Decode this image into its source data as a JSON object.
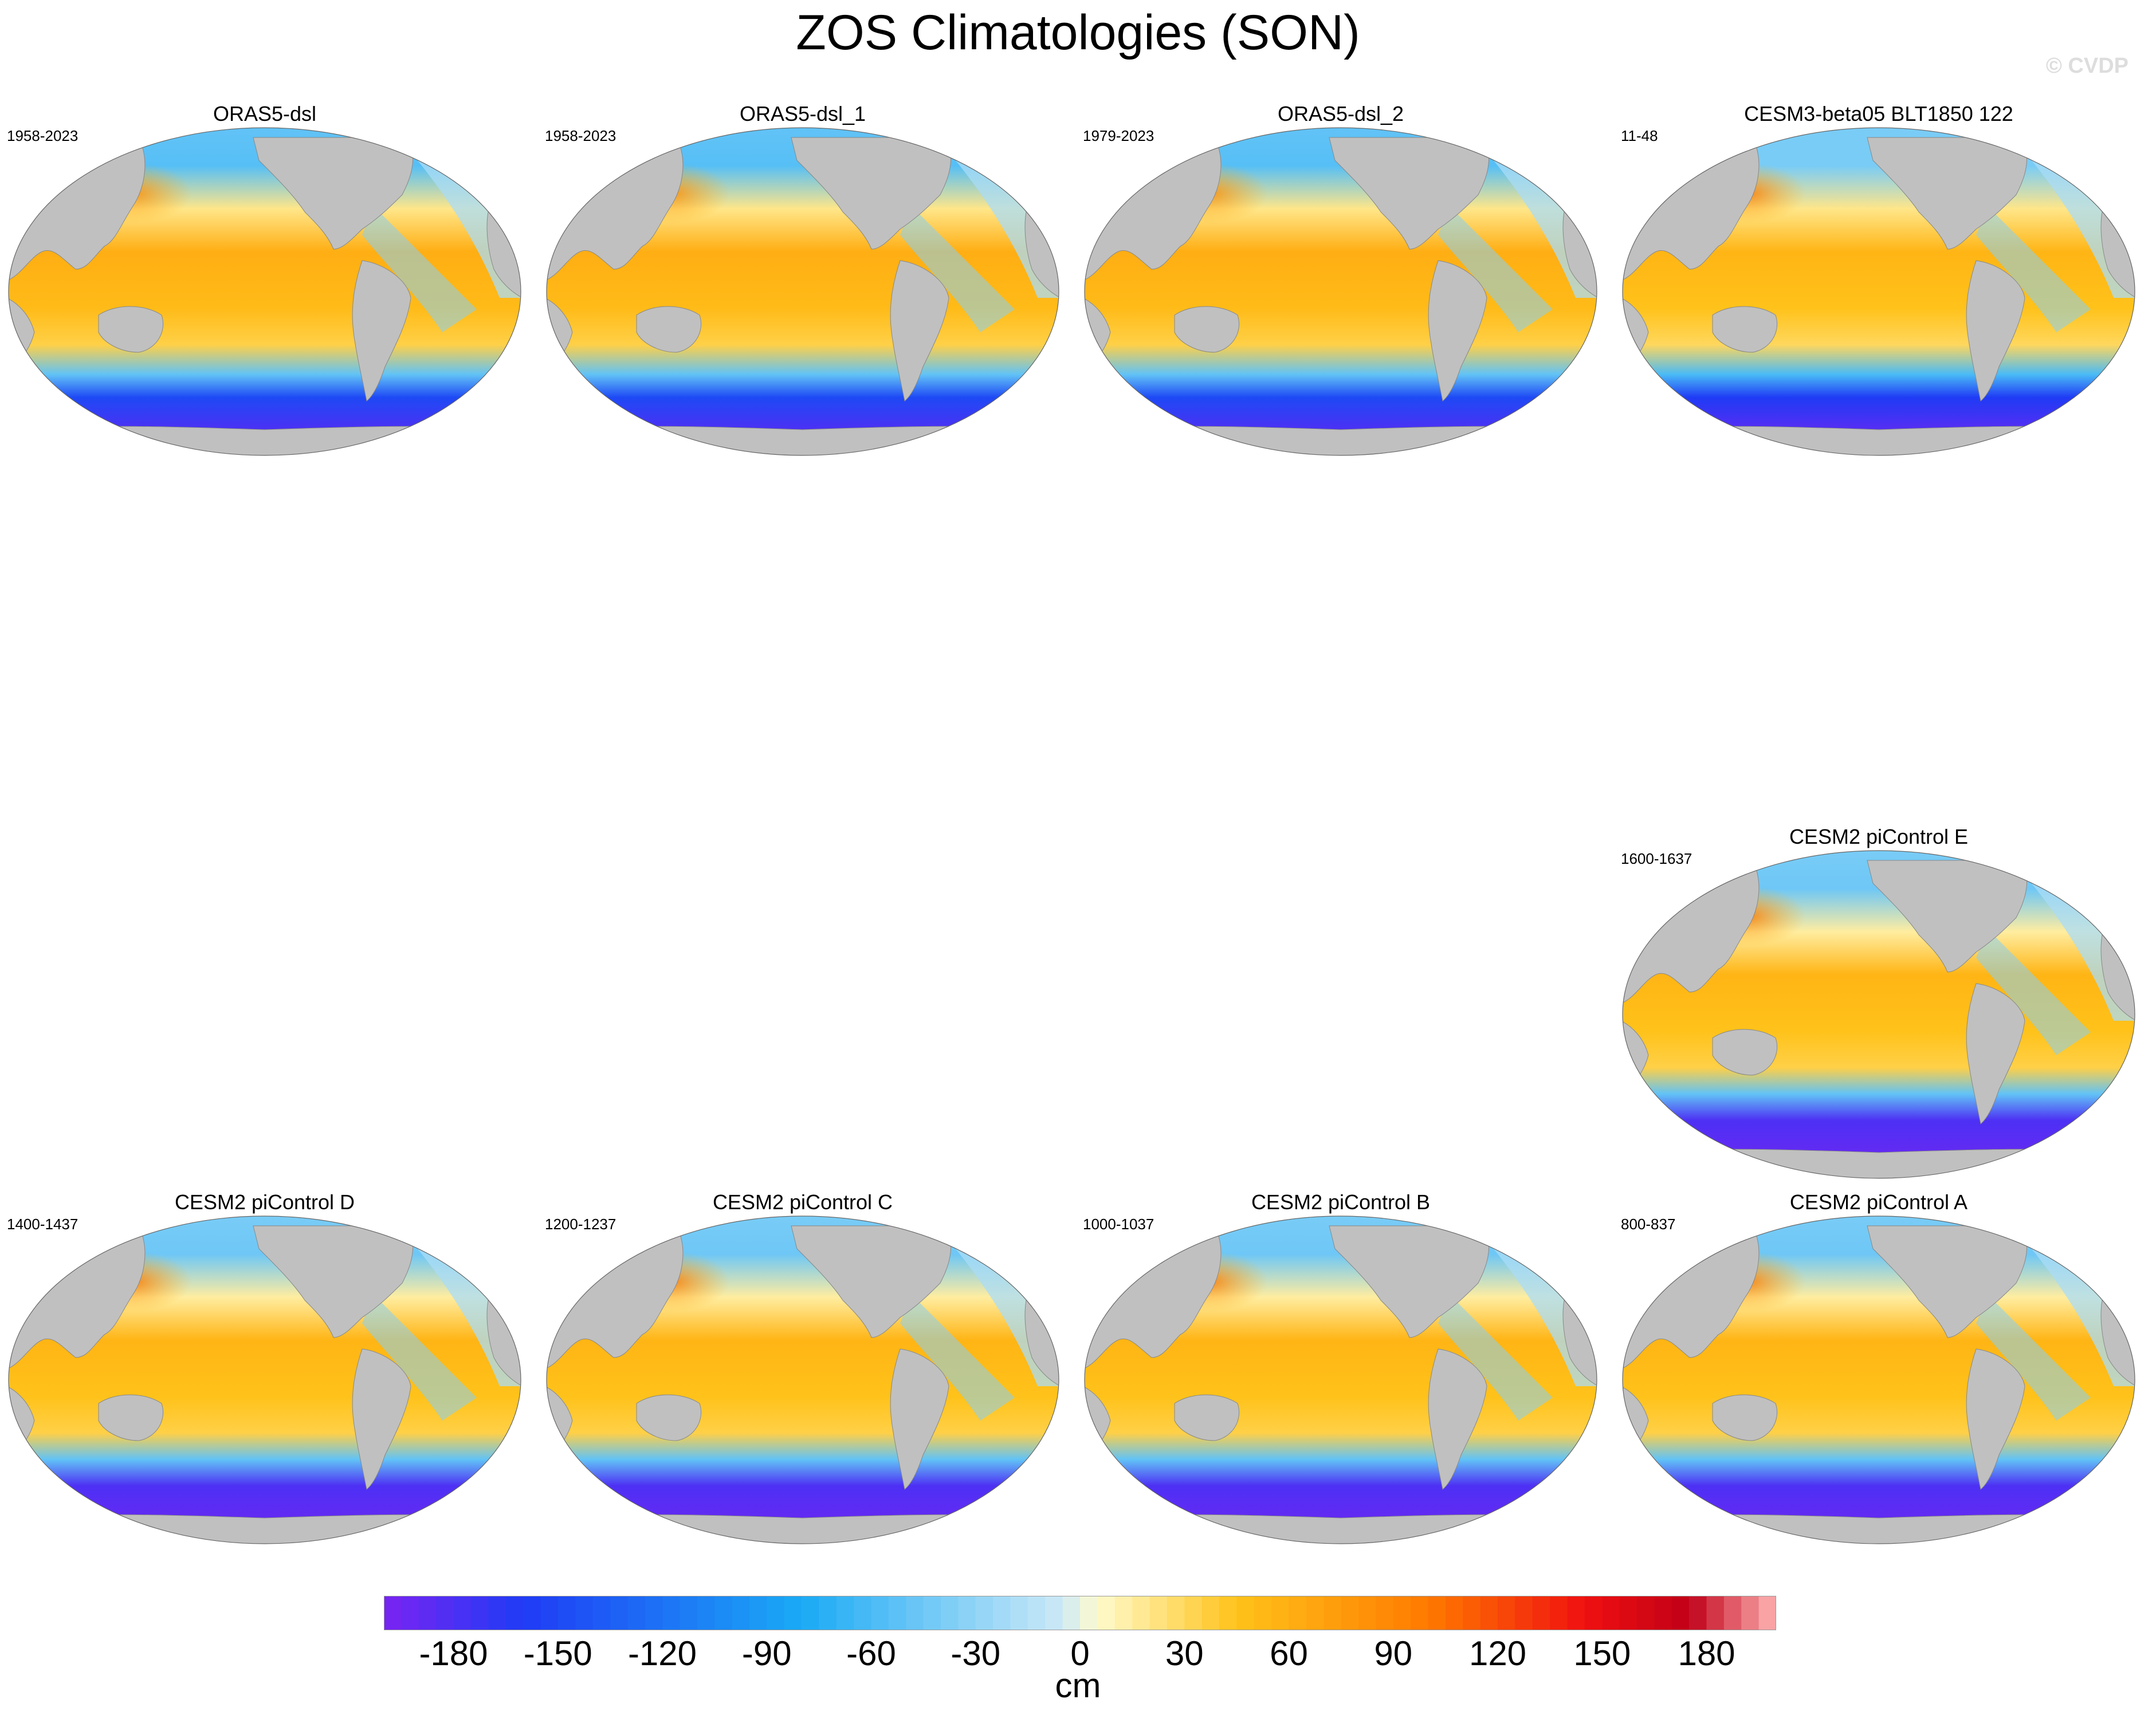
{
  "title": "ZOS Climatologies (SON)",
  "watermark": "© CVDP",
  "panels": [
    {
      "title": "ORAS5-dsl",
      "years": "1958-2023",
      "style": "obs"
    },
    {
      "title": "ORAS5-dsl_1",
      "years": "1958-2023",
      "style": "obs"
    },
    {
      "title": "ORAS5-dsl_2",
      "years": "1979-2023",
      "style": "obs"
    },
    {
      "title": "CESM3-beta05 BLT1850 122",
      "years": "11-48",
      "style": "beta"
    },
    {
      "title": "CESM2 piControl E",
      "years": "1600-1637",
      "style": "model"
    },
    {
      "title": "CESM2 piControl D",
      "years": "1400-1437",
      "style": "model"
    },
    {
      "title": "CESM2 piControl C",
      "years": "1200-1237",
      "style": "model"
    },
    {
      "title": "CESM2 piControl B",
      "years": "1000-1037",
      "style": "model"
    },
    {
      "title": "CESM2 piControl A",
      "years": "800-837",
      "style": "model"
    }
  ],
  "colorbar": {
    "unit": "cm",
    "min": -200,
    "max": 200,
    "interval": 5,
    "ticks": [
      "-180",
      "-150",
      "-120",
      "-90",
      "-60",
      "-30",
      "0",
      "30",
      "60",
      "90",
      "120",
      "150",
      "180"
    ],
    "colors": {
      "deep_negative": "#7a24f2",
      "negative": "#1f3bf5",
      "mid_negative": "#1aaaf5",
      "light_negative": "#cde9f7",
      "light_positive": "#fffbcc",
      "mid_positive": "#ffc21a",
      "positive": "#ff7a00",
      "strong_positive": "#f01010",
      "deep_positive": "#c00018",
      "extreme_positive": "#ffb5b5",
      "land": "#c0c0c0"
    }
  }
}
